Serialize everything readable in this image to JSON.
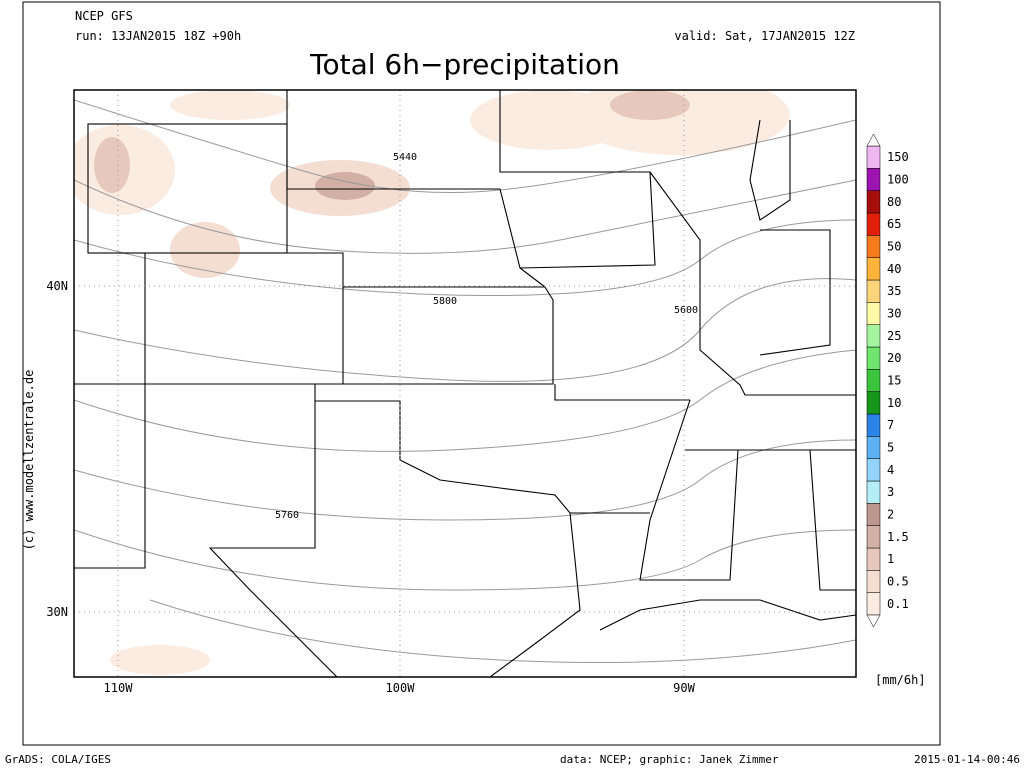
{
  "header": {
    "model": "NCEP GFS",
    "run": "run: 13JAN2015 18Z +90h",
    "valid": "valid: Sat, 17JAN2015 12Z",
    "title": "Total 6h−precipitation"
  },
  "map": {
    "lon_labels": [
      "110W",
      "100W",
      "90W"
    ],
    "lat_labels": [
      "40N",
      "30N"
    ],
    "contour_labels": [
      "5440",
      "5800",
      "5600",
      "5760"
    ]
  },
  "legend": {
    "unit": "[mm/6h]",
    "levels": [
      "0.1",
      "0.5",
      "1",
      "1.5",
      "2",
      "3",
      "4",
      "5",
      "7",
      "10",
      "15",
      "20",
      "25",
      "30",
      "35",
      "40",
      "50",
      "65",
      "80",
      "100",
      "150"
    ],
    "colors": [
      "#fbece2",
      "#f4ddd1",
      "#e6c9bc",
      "#d2b0a6",
      "#bc968f",
      "#b6eef8",
      "#93d3fa",
      "#5eb2f2",
      "#2b84e6",
      "#16951a",
      "#3cc43f",
      "#6fe56f",
      "#a5f5a0",
      "#fff9a8",
      "#fdd57c",
      "#fdb43c",
      "#f57a1c",
      "#e0200a",
      "#a50e0a",
      "#9e14b0",
      "#f0b8f0"
    ]
  },
  "credit": "(c) www.modellzentrale.de",
  "footer": {
    "left": "GrADS: COLA/IGES",
    "center": "data: NCEP; graphic: Janek Zimmer",
    "right": "2015-01-14-00:46"
  }
}
